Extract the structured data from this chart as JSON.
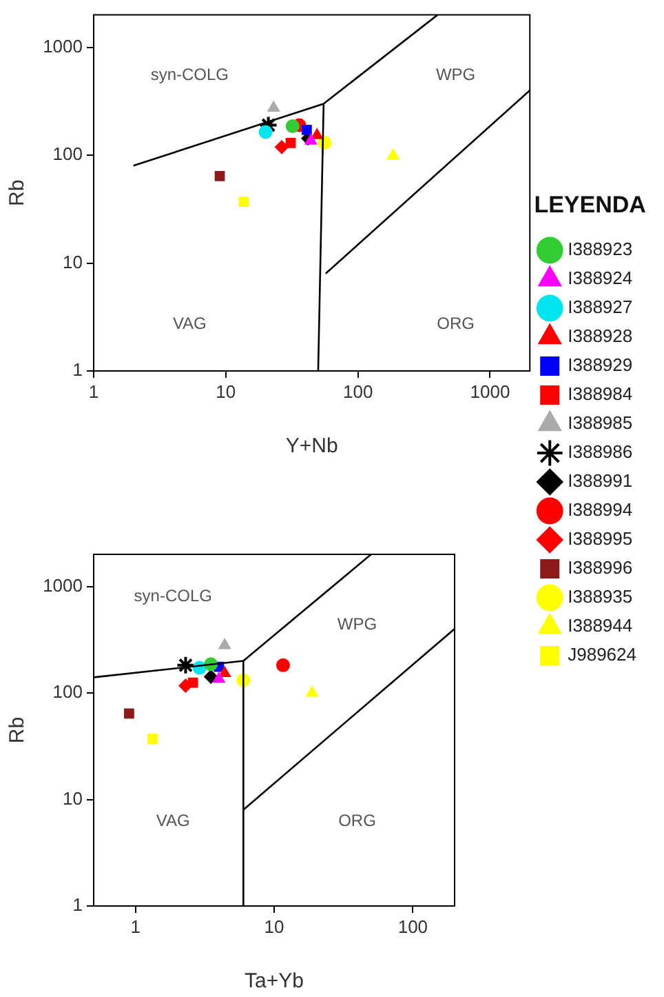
{
  "chart_data": [
    {
      "type": "scatter",
      "xlabel": "Y+Nb",
      "ylabel": "Rb",
      "log": "xy",
      "grid": false,
      "legend": "right",
      "legend_title": "LEYENDA",
      "xlim": [
        1,
        2000
      ],
      "xticks": [
        1,
        10,
        100,
        1000
      ],
      "ylim": [
        1,
        2000
      ],
      "yticks": [
        1,
        10,
        100,
        1000
      ],
      "annotations": [
        "syn-COLG",
        "WPG",
        "VAG",
        "ORG"
      ],
      "series": [
        {
          "type": "line",
          "color": "#000000",
          "marker": "none",
          "x": [
            2,
            55,
            400
          ],
          "values": [
            80,
            300,
            2000
          ]
        },
        {
          "type": "line",
          "color": "#000000",
          "marker": "none",
          "x": [
            55,
            50
          ],
          "values": [
            300,
            1
          ]
        },
        {
          "type": "line",
          "color": "#000000",
          "marker": "none",
          "x": [
            57,
            2000
          ],
          "values": [
            8,
            400
          ]
        },
        {
          "name": "I388923",
          "color": "#33cc33",
          "marker": "circle",
          "x": [
            32
          ],
          "values": [
            186
          ]
        },
        {
          "name": "I388924",
          "color": "#ff00ff",
          "marker": "triangle",
          "x": [
            44
          ],
          "values": [
            136
          ]
        },
        {
          "name": "I388927",
          "color": "#00e5ee",
          "marker": "circle",
          "x": [
            20
          ],
          "values": [
            164
          ]
        },
        {
          "name": "I388928",
          "color": "#ff0000",
          "marker": "triangle",
          "x": [
            49
          ],
          "values": [
            153
          ]
        },
        {
          "name": "I388929",
          "color": "#0000ff",
          "marker": "square",
          "x": [
            41
          ],
          "values": [
            172
          ]
        },
        {
          "name": "I388984",
          "color": "#ff0000",
          "marker": "square",
          "x": [
            31
          ],
          "values": [
            130
          ]
        },
        {
          "name": "I388985",
          "color": "#aaaaaa",
          "marker": "triangle",
          "x": [
            23
          ],
          "values": [
            275
          ]
        },
        {
          "name": "I388986",
          "color": "#000000",
          "marker": "cross",
          "x": [
            21
          ],
          "values": [
            190
          ]
        },
        {
          "name": "I388991",
          "color": "#000000",
          "marker": "diamond",
          "x": [
            42
          ],
          "values": [
            143
          ]
        },
        {
          "name": "I388994",
          "color": "#ff0000",
          "marker": "circle",
          "x": [
            36
          ],
          "values": [
            190
          ]
        },
        {
          "name": "I388995",
          "color": "#ff0000",
          "marker": "diamond",
          "x": [
            26.5
          ],
          "values": [
            119
          ]
        },
        {
          "name": "I388996",
          "color": "#8b1a1a",
          "marker": "square",
          "x": [
            9
          ],
          "values": [
            64
          ]
        },
        {
          "name": "I388935",
          "color": "#ffff00",
          "marker": "circle",
          "x": [
            56
          ],
          "values": [
            130
          ]
        },
        {
          "name": "I388944",
          "color": "#ffff00",
          "marker": "triangle",
          "x": [
            185
          ],
          "values": [
            99
          ]
        },
        {
          "name": "J989624",
          "color": "#ffff00",
          "marker": "square",
          "x": [
            13.7
          ],
          "values": [
            37
          ]
        }
      ]
    },
    {
      "type": "scatter",
      "xlabel": "Ta+Yb",
      "ylabel": "Rb",
      "log": "xy",
      "grid": false,
      "xlim": [
        0.5,
        200
      ],
      "xticks": [
        1,
        10,
        100
      ],
      "ylim": [
        1,
        2000
      ],
      "yticks": [
        1,
        10,
        100,
        1000
      ],
      "annotations": [
        "syn-COLG",
        "WPG",
        "VAG",
        "ORG"
      ],
      "series": [
        {
          "type": "line",
          "color": "#000000",
          "marker": "none",
          "x": [
            0.5,
            6,
            50
          ],
          "values": [
            140,
            200,
            2000
          ]
        },
        {
          "type": "line",
          "color": "#000000",
          "marker": "none",
          "x": [
            6,
            6
          ],
          "values": [
            200,
            1
          ]
        },
        {
          "type": "line",
          "color": "#000000",
          "marker": "none",
          "x": [
            6,
            200
          ],
          "values": [
            8,
            400
          ]
        },
        {
          "color": "#33cc33",
          "marker": "circle",
          "x": [
            3.5
          ],
          "values": [
            186
          ]
        },
        {
          "color": "#ff00ff",
          "marker": "triangle",
          "x": [
            4.0
          ],
          "values": [
            135
          ]
        },
        {
          "color": "#00e5ee",
          "marker": "circle",
          "x": [
            2.9
          ],
          "values": [
            172
          ]
        },
        {
          "color": "#ff0000",
          "marker": "triangle",
          "x": [
            4.4
          ],
          "values": [
            153
          ]
        },
        {
          "color": "#0000ff",
          "marker": "square",
          "x": [
            4.0
          ],
          "values": [
            176
          ]
        },
        {
          "color": "#ff0000",
          "marker": "square",
          "x": [
            2.6
          ],
          "values": [
            125
          ]
        },
        {
          "color": "#aaaaaa",
          "marker": "triangle",
          "x": [
            4.4
          ],
          "values": [
            280
          ]
        },
        {
          "color": "#000000",
          "marker": "cross",
          "x": [
            2.3
          ],
          "values": [
            182
          ]
        },
        {
          "color": "#000000",
          "marker": "diamond",
          "x": [
            3.5
          ],
          "values": [
            142
          ]
        },
        {
          "color": "#ff0000",
          "marker": "circle",
          "x": [
            11.6
          ],
          "values": [
            182
          ]
        },
        {
          "color": "#ff0000",
          "marker": "diamond",
          "x": [
            2.3
          ],
          "values": [
            117
          ]
        },
        {
          "color": "#8b1a1a",
          "marker": "square",
          "x": [
            0.9
          ],
          "values": [
            64
          ]
        },
        {
          "color": "#ffff00",
          "marker": "circle",
          "x": [
            6.0
          ],
          "values": [
            132
          ]
        },
        {
          "color": "#ffff00",
          "marker": "triangle",
          "x": [
            18.8
          ],
          "values": [
            100
          ]
        },
        {
          "color": "#ffff00",
          "marker": "square",
          "x": [
            1.33
          ],
          "values": [
            37
          ]
        }
      ]
    }
  ]
}
